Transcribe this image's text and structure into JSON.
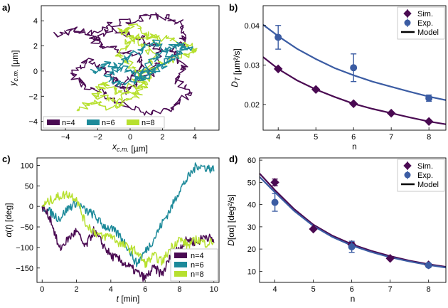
{
  "colors": {
    "n4": "#4a0a52",
    "n6": "#1d8a9a",
    "n8": "#b7e02f",
    "sim": "#4a0a52",
    "exp": "#3b5ca3",
    "model_sim": "#4a0a52",
    "model_exp": "#3b5ca3"
  },
  "panels": {
    "a": {
      "label": "a)"
    },
    "b": {
      "label": "b)"
    },
    "c": {
      "label": "c)"
    },
    "d": {
      "label": "d)"
    }
  },
  "chart_data": [
    {
      "id": "a",
      "type": "line",
      "title": "",
      "xlabel": "x_c.m. [µm]",
      "ylabel": "y_c.m. [µm]",
      "xlim": [
        -5.5,
        5.5
      ],
      "ylim": [
        -4.7,
        5.2
      ],
      "xticks": [
        "−4",
        "−2",
        "0",
        "2",
        "4"
      ],
      "xtick_values": [
        -4,
        -2,
        0,
        2,
        4
      ],
      "yticks": [
        "−4",
        "−2",
        "0",
        "2",
        "4"
      ],
      "ytick_values": [
        -4,
        -2,
        0,
        2,
        4
      ],
      "legend_position": "bottom-left",
      "series": [
        {
          "name": "n=4",
          "key": "n4",
          "path": [
            [
              -4.5,
              2.8
            ],
            [
              -3.6,
              3.3
            ],
            [
              -2.4,
              3.0
            ],
            [
              -1.2,
              3.7
            ],
            [
              0.5,
              4.1
            ],
            [
              1.8,
              4.4
            ],
            [
              3.0,
              3.8
            ],
            [
              3.4,
              2.6
            ],
            [
              2.6,
              1.6
            ],
            [
              3.4,
              0.4
            ],
            [
              2.8,
              -0.7
            ],
            [
              3.7,
              -1.8
            ],
            [
              2.3,
              -3.1
            ],
            [
              0.6,
              -3.3
            ],
            [
              -1.2,
              -2.0
            ],
            [
              -2.6,
              -1.2
            ],
            [
              -3.6,
              -0.3
            ],
            [
              -2.7,
              0.9
            ],
            [
              -1.6,
              0.1
            ],
            [
              -0.4,
              -0.9
            ],
            [
              0.7,
              0.2
            ],
            [
              0.4,
              1.3
            ],
            [
              -1.3,
              1.8
            ],
            [
              -2.4,
              2.6
            ],
            [
              -1.0,
              3.3
            ],
            [
              0.8,
              2.6
            ],
            [
              1.9,
              1.6
            ],
            [
              1.2,
              -0.3
            ],
            [
              -0.2,
              -1.6
            ],
            [
              -1.0,
              -0.6
            ]
          ]
        },
        {
          "name": "n=6",
          "key": "n6",
          "path": [
            [
              -2.3,
              -0.1
            ],
            [
              -1.4,
              0.5
            ],
            [
              -0.3,
              0.2
            ],
            [
              0.6,
              -0.4
            ],
            [
              1.2,
              0.6
            ],
            [
              2.1,
              1.5
            ],
            [
              3.0,
              2.2
            ],
            [
              3.6,
              1.8
            ],
            [
              2.6,
              0.9
            ],
            [
              1.7,
              0.2
            ],
            [
              0.7,
              -0.6
            ],
            [
              -0.5,
              -1.1
            ],
            [
              -1.5,
              -0.6
            ],
            [
              -0.5,
              0.7
            ],
            [
              0.6,
              1.7
            ],
            [
              1.7,
              2.3
            ],
            [
              2.4,
              1.2
            ],
            [
              1.2,
              -0.1
            ],
            [
              0.2,
              -0.8
            ]
          ]
        },
        {
          "name": "n=8",
          "key": "n8",
          "path": [
            [
              -3.2,
              -3.0
            ],
            [
              -2.3,
              -2.5
            ],
            [
              -1.1,
              -2.9
            ],
            [
              0.1,
              -2.2
            ],
            [
              1.0,
              -1.1
            ],
            [
              0.3,
              0.2
            ],
            [
              -0.7,
              1.2
            ],
            [
              -0.1,
              2.3
            ],
            [
              0.9,
              2.8
            ],
            [
              2.1,
              2.6
            ],
            [
              3.3,
              2.2
            ],
            [
              4.0,
              1.6
            ],
            [
              3.1,
              1.1
            ],
            [
              2.0,
              0.7
            ],
            [
              1.2,
              -0.3
            ],
            [
              0.4,
              -1.6
            ],
            [
              -0.9,
              -2.4
            ],
            [
              -2.1,
              -2.0
            ],
            [
              -1.6,
              -1.0
            ],
            [
              -0.5,
              -1.8
            ],
            [
              0.7,
              -0.5
            ],
            [
              1.5,
              1.3
            ],
            [
              0.4,
              2.7
            ],
            [
              -0.6,
              3.2
            ],
            [
              0.5,
              3.6
            ],
            [
              2.0,
              2.0
            ]
          ]
        }
      ]
    },
    {
      "id": "b",
      "type": "scatter",
      "title": "",
      "xlabel": "n",
      "ylabel": "D_T [µm²/s]",
      "xlim": [
        3.6,
        8.45
      ],
      "ylim": [
        0.0135,
        0.045
      ],
      "xticks": [
        "4",
        "5",
        "6",
        "7",
        "8"
      ],
      "xtick_values": [
        4,
        5,
        6,
        7,
        8
      ],
      "yticks": [
        "0.02",
        "0.03",
        "0.04"
      ],
      "ytick_values": [
        0.02,
        0.03,
        0.04
      ],
      "legend_position": "top-right",
      "series": [
        {
          "name": "Sim.",
          "key": "sim",
          "marker": "diamond",
          "x": [
            4,
            5,
            6,
            7,
            8
          ],
          "y": [
            0.029,
            0.0238,
            0.0202,
            0.0178,
            0.0157
          ]
        },
        {
          "name": "Exp.",
          "key": "exp",
          "marker": "circle",
          "x": [
            4,
            6,
            8
          ],
          "y": [
            0.037,
            0.0293,
            0.0216
          ],
          "yerr": [
            0.003,
            0.0035,
            0.0008
          ]
        },
        {
          "name": "Model",
          "key": "model_sim",
          "marker": "line",
          "x": [
            3.6,
            4,
            4.5,
            5,
            5.5,
            6,
            6.5,
            7,
            7.5,
            8,
            8.45
          ],
          "y": [
            0.032,
            0.029,
            0.0261,
            0.0238,
            0.0219,
            0.0202,
            0.0189,
            0.0178,
            0.0167,
            0.0157,
            0.015
          ]
        },
        {
          "name": "",
          "key": "model_exp",
          "marker": "line",
          "x": [
            3.6,
            4,
            4.5,
            5,
            5.5,
            6,
            6.5,
            7,
            7.5,
            8,
            8.45
          ],
          "y": [
            0.0402,
            0.0373,
            0.0341,
            0.0315,
            0.0292,
            0.0274,
            0.0258,
            0.0245,
            0.0232,
            0.022,
            0.0211
          ]
        }
      ]
    },
    {
      "id": "c",
      "type": "line",
      "title": "",
      "xlabel": "t [min]",
      "ylabel": "α(t) [deg]",
      "xlim": [
        -0.3,
        10.3
      ],
      "ylim": [
        -185,
        118
      ],
      "xticks": [
        "0",
        "2",
        "4",
        "6",
        "8",
        "10"
      ],
      "xtick_values": [
        0,
        2,
        4,
        6,
        8,
        10
      ],
      "yticks": [
        "−150",
        "−100",
        "−50",
        "0",
        "50",
        "100"
      ],
      "ytick_values": [
        -150,
        -100,
        -50,
        0,
        50,
        100
      ],
      "legend_position": "bottom-right",
      "series": [
        {
          "name": "n=4",
          "key": "n4",
          "x": [
            0,
            0.5,
            1.0,
            1.5,
            2.0,
            2.5,
            3.0,
            3.5,
            4.0,
            4.5,
            5.0,
            5.5,
            6.0,
            6.5,
            7.0,
            7.5,
            8.0,
            8.5,
            9.0,
            9.5,
            10.0
          ],
          "y": [
            0,
            -30,
            -105,
            -80,
            -60,
            -100,
            -60,
            -90,
            -120,
            -130,
            -145,
            -160,
            -175,
            -150,
            -165,
            -120,
            -100,
            -80,
            -90,
            -70,
            -85
          ]
        },
        {
          "name": "n=6",
          "key": "n6",
          "x": [
            0,
            0.5,
            1.0,
            1.5,
            2.0,
            2.5,
            3.0,
            3.5,
            4.0,
            4.5,
            5.0,
            5.5,
            6.0,
            6.5,
            7.0,
            7.5,
            8.0,
            8.5,
            9.0,
            9.5,
            10.0
          ],
          "y": [
            0,
            -15,
            -30,
            -5,
            10,
            -10,
            -20,
            -45,
            -55,
            -70,
            -100,
            -140,
            -110,
            -80,
            -40,
            -5,
            40,
            70,
            100,
            95,
            90
          ]
        },
        {
          "name": "n=8",
          "key": "n8",
          "x": [
            0,
            0.5,
            1.0,
            1.5,
            2.0,
            2.5,
            3.0,
            3.5,
            4.0,
            4.5,
            5.0,
            5.5,
            6.0,
            6.5,
            7.0,
            7.5,
            8.0,
            8.5,
            9.0,
            9.5,
            10.0
          ],
          "y": [
            0,
            15,
            25,
            30,
            20,
            -40,
            -60,
            -75,
            -70,
            -90,
            -100,
            -110,
            -140,
            -120,
            -135,
            -100,
            -80,
            -95,
            -80,
            -90,
            -85
          ]
        }
      ]
    },
    {
      "id": "d",
      "type": "scatter",
      "title": "",
      "xlabel": "n",
      "ylabel": "D[αα] [deg²/s]",
      "xlim": [
        3.6,
        8.45
      ],
      "ylim": [
        5,
        61
      ],
      "xticks": [
        "4",
        "5",
        "6",
        "7",
        "8"
      ],
      "xtick_values": [
        4,
        5,
        6,
        7,
        8
      ],
      "yticks": [
        "10",
        "20",
        "30",
        "40",
        "50",
        "60"
      ],
      "ytick_values": [
        10,
        20,
        30,
        40,
        50,
        60
      ],
      "legend_position": "top-right",
      "series": [
        {
          "name": "Sim.",
          "key": "sim",
          "marker": "diamond",
          "x": [
            4,
            5,
            6,
            7,
            8
          ],
          "y": [
            50.0,
            29.0,
            22.0,
            15.8,
            12.9
          ],
          "yerr": [
            1.5,
            0,
            1.0,
            0,
            0
          ]
        },
        {
          "name": "Exp.",
          "key": "exp",
          "marker": "circle",
          "x": [
            4,
            6,
            8
          ],
          "y": [
            41.0,
            21.0,
            12.7
          ],
          "yerr": [
            4.0,
            2.5,
            0.8
          ]
        },
        {
          "name": "Model",
          "key": "model_sim",
          "marker": "line",
          "x": [
            3.6,
            4,
            4.5,
            5,
            5.5,
            6,
            6.5,
            7,
            7.5,
            8,
            8.45
          ],
          "y": [
            54.0,
            46.5,
            38.0,
            31.0,
            26.0,
            22.2,
            19.2,
            16.8,
            14.8,
            13.2,
            12.0
          ]
        },
        {
          "name": "",
          "key": "model_exp",
          "marker": "line",
          "x": [
            3.6,
            4,
            4.5,
            5,
            5.5,
            6,
            6.5,
            7,
            7.5,
            8,
            8.45
          ],
          "y": [
            52.5,
            45.5,
            37.2,
            30.4,
            25.4,
            21.6,
            18.7,
            16.3,
            14.4,
            12.8,
            11.7
          ]
        }
      ]
    }
  ]
}
